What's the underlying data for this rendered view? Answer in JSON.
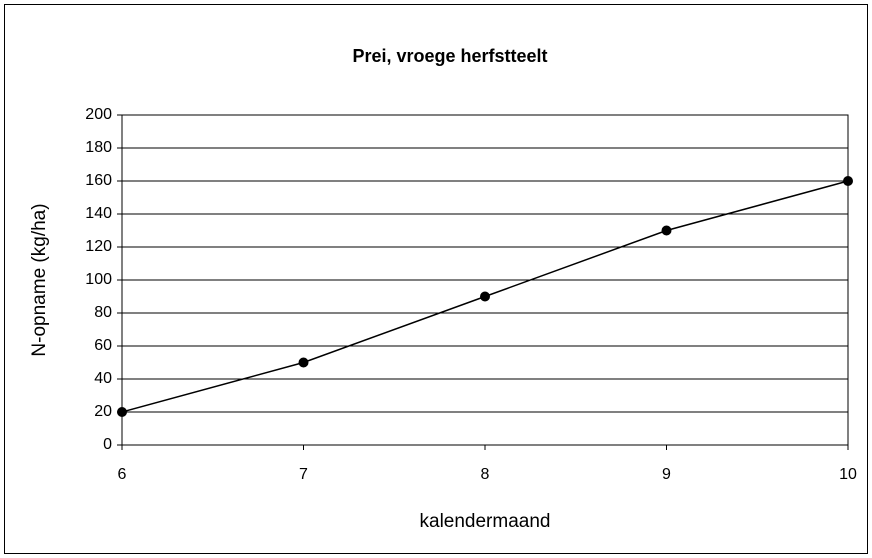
{
  "chart_data": {
    "type": "line",
    "title": "Prei, vroege herfstteelt",
    "xlabel": "kalendermaand",
    "ylabel": "N-opname (kg/ha)",
    "x": [
      6,
      7,
      8,
      9,
      10
    ],
    "values": [
      20,
      50,
      90,
      130,
      160
    ],
    "color": "#000000",
    "xlim": [
      6,
      10
    ],
    "xticks": [
      6,
      7,
      8,
      9,
      10
    ],
    "ylim": [
      0,
      200
    ],
    "yticks": [
      0,
      20,
      40,
      60,
      80,
      100,
      120,
      140,
      160,
      180,
      200
    ],
    "grid": true,
    "markers": true
  }
}
